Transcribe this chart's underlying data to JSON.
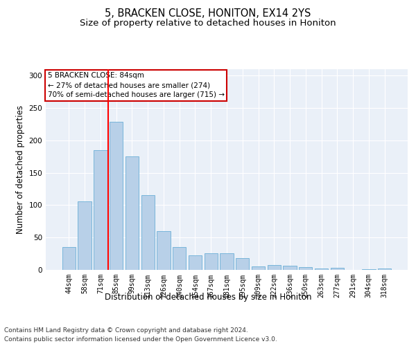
{
  "title": "5, BRACKEN CLOSE, HONITON, EX14 2YS",
  "subtitle": "Size of property relative to detached houses in Honiton",
  "xlabel": "Distribution of detached houses by size in Honiton",
  "ylabel": "Number of detached properties",
  "categories": [
    "44sqm",
    "58sqm",
    "71sqm",
    "85sqm",
    "99sqm",
    "113sqm",
    "126sqm",
    "140sqm",
    "154sqm",
    "167sqm",
    "181sqm",
    "195sqm",
    "209sqm",
    "222sqm",
    "236sqm",
    "250sqm",
    "263sqm",
    "277sqm",
    "291sqm",
    "304sqm",
    "318sqm"
  ],
  "values": [
    35,
    106,
    185,
    229,
    175,
    115,
    60,
    35,
    22,
    26,
    26,
    18,
    5,
    8,
    6,
    4,
    2,
    3,
    0,
    1,
    2
  ],
  "bar_color": "#b8d0e8",
  "bar_edge_color": "#6aafd6",
  "red_line_x": 2.5,
  "highlight_label": "5 BRACKEN CLOSE: 84sqm",
  "annotation_line1": "← 27% of detached houses are smaller (274)",
  "annotation_line2": "70% of semi-detached houses are larger (715) →",
  "annotation_box_color": "#ffffff",
  "annotation_box_edge_color": "#cc0000",
  "footer1": "Contains HM Land Registry data © Crown copyright and database right 2024.",
  "footer2": "Contains public sector information licensed under the Open Government Licence v3.0.",
  "ylim": [
    0,
    310
  ],
  "yticks": [
    0,
    50,
    100,
    150,
    200,
    250,
    300
  ],
  "bg_color": "#eaf0f8",
  "grid_color": "#ffffff",
  "title_fontsize": 10.5,
  "subtitle_fontsize": 9.5,
  "tick_fontsize": 7,
  "ylabel_fontsize": 8.5,
  "xlabel_fontsize": 8.5,
  "footer_fontsize": 6.5
}
